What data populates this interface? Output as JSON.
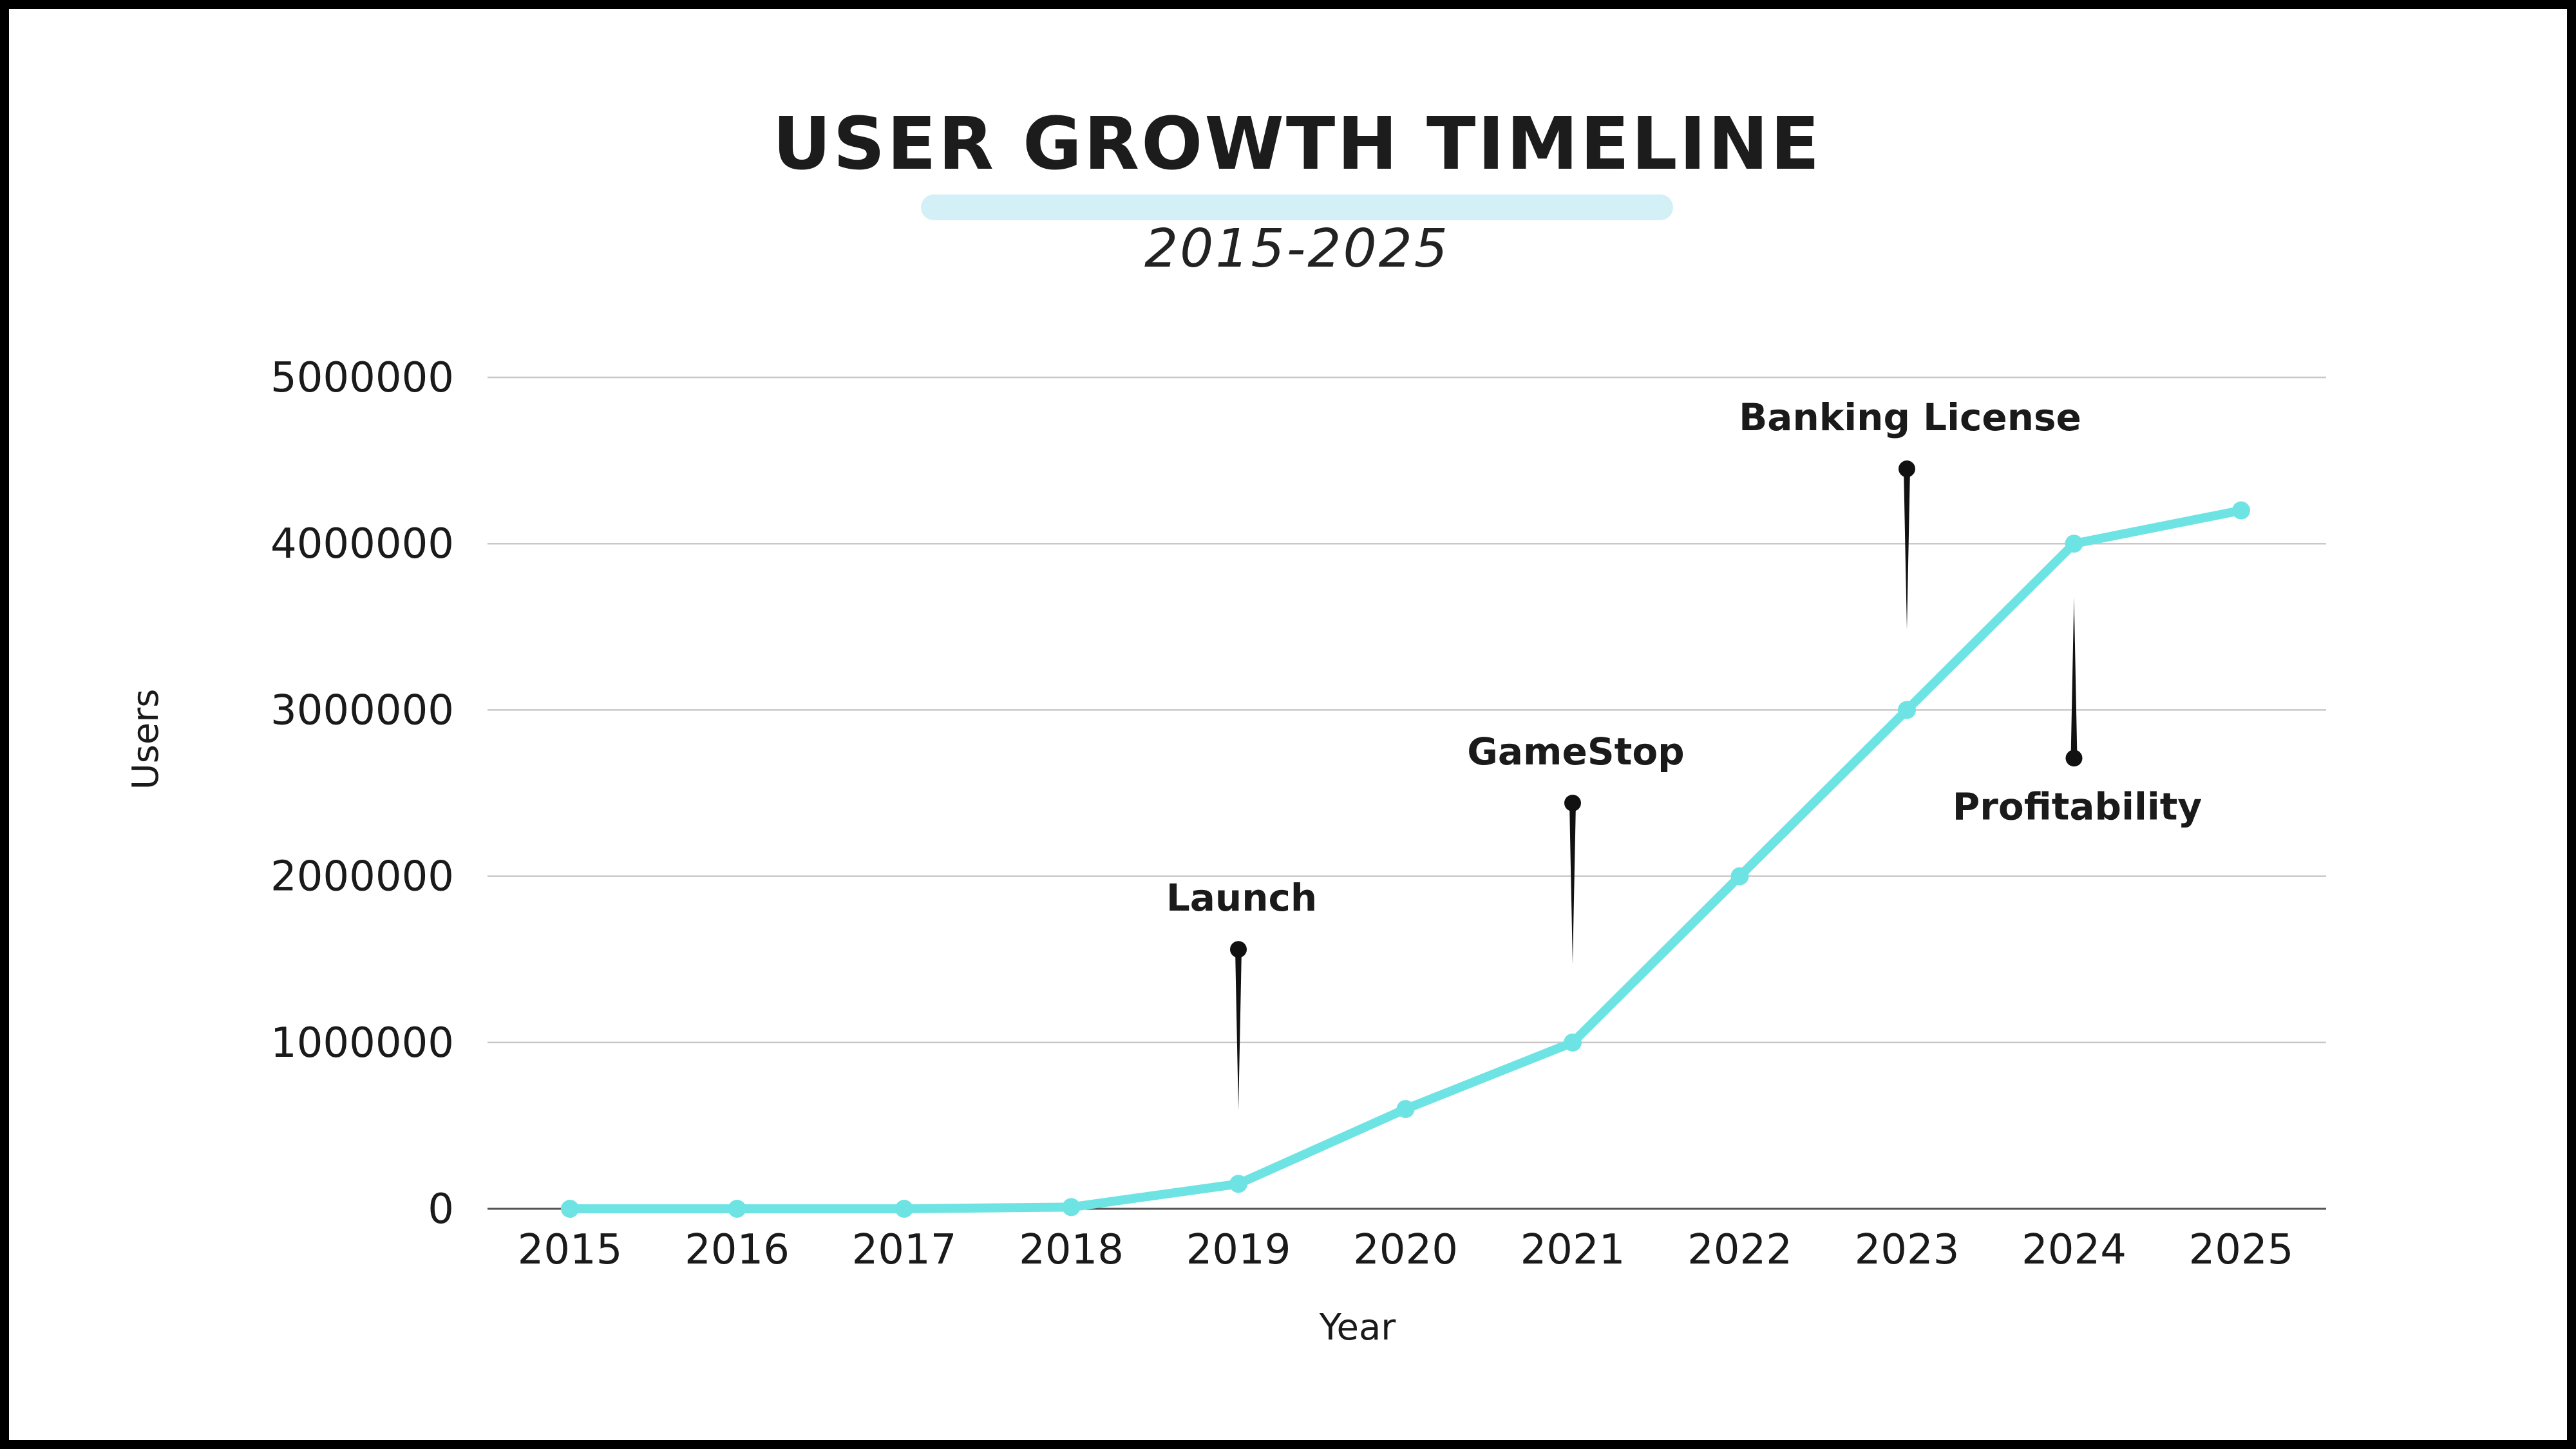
{
  "chart_data": {
    "type": "line",
    "title": "USER GROWTH TIMELINE",
    "subtitle": "2015-2025",
    "xlabel": "Year",
    "ylabel": "Users",
    "x": [
      "2015",
      "2016",
      "2017",
      "2018",
      "2019",
      "2020",
      "2021",
      "2022",
      "2023",
      "2024",
      "2025"
    ],
    "series": [
      {
        "values": [
          0,
          0,
          0,
          10000,
          150000,
          600000,
          1000000,
          2000000,
          3000000,
          4000000,
          4200000
        ],
        "color": "#6ee3e3"
      }
    ],
    "ylim": [
      0,
      5000000
    ],
    "yticks": [
      "0",
      "1000000",
      "2000000",
      "3000000",
      "4000000",
      "5000000"
    ],
    "grid": true,
    "legend": "none",
    "annotations": [
      {
        "label": "Launch",
        "x": "2019",
        "y": 1560000,
        "placement": "above"
      },
      {
        "label": "GameStop",
        "x": "2021",
        "y": 2440000,
        "placement": "above"
      },
      {
        "label": "Banking License",
        "x": "2023",
        "y": 4450000,
        "placement": "above"
      },
      {
        "label": "Profitability",
        "x": "2024",
        "y": 2710000,
        "placement": "below"
      }
    ],
    "colors": {
      "line": "#6ee3e3",
      "grid": "#c8c8c8",
      "axis": "#555555",
      "title_bar": "#d3f0f7"
    }
  }
}
